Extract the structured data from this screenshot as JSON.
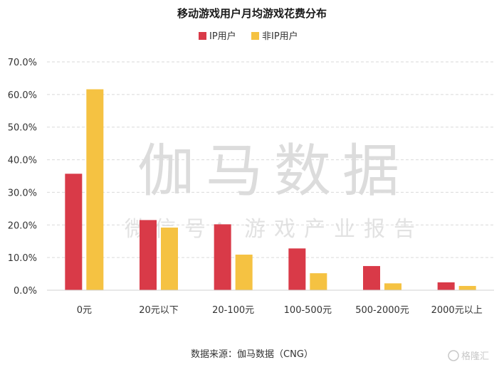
{
  "chart_data": {
    "type": "bar",
    "title": "移动游戏用户月均游戏花费分布",
    "categories": [
      "0元",
      "20元以下",
      "20-100元",
      "100-500元",
      "500-2000元",
      "2000元以上"
    ],
    "series": [
      {
        "name": "IP用户",
        "color": "#d93a48",
        "values": [
          35.7,
          21.5,
          20.2,
          12.8,
          7.4,
          2.4
        ]
      },
      {
        "name": "非IP用户",
        "color": "#f5c242",
        "values": [
          61.6,
          19.2,
          10.9,
          5.2,
          2.1,
          1.3
        ]
      }
    ],
    "yticks": [
      "0.0%",
      "10.0%",
      "20.0%",
      "30.0%",
      "40.0%",
      "50.0%",
      "60.0%",
      "70.0%"
    ],
    "ylim": [
      0,
      70
    ],
    "grid": true,
    "legend": "top-center",
    "source": "数据来源：伽马数据（CNG）"
  },
  "watermark": {
    "main": "伽马数据",
    "sub": "微信号：游戏产业报告"
  },
  "corner_logo": "格隆汇"
}
